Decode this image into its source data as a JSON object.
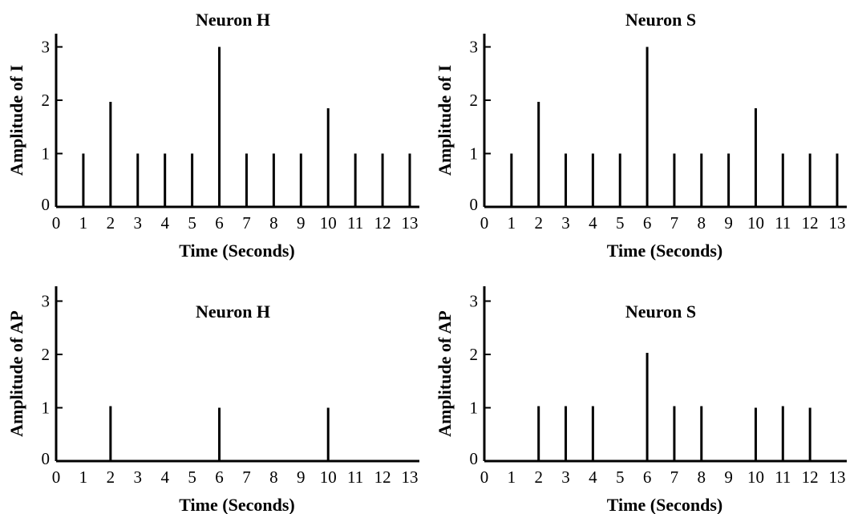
{
  "chart_data": [
    {
      "type": "bar",
      "title": "Neuron H",
      "xlabel": "Time (Seconds)",
      "ylabel": "Amplitude of I",
      "x_ticks": [
        "0",
        "1",
        "2",
        "3",
        "4",
        "5",
        "6",
        "7",
        "8",
        "9",
        "10",
        "11",
        "12",
        "13"
      ],
      "y_ticks": [
        "0",
        "1",
        "2",
        "3"
      ],
      "xlim": [
        0,
        13
      ],
      "ylim": [
        0,
        3.3
      ],
      "x": [
        1,
        2,
        3,
        4,
        5,
        6,
        7,
        8,
        9,
        10,
        11,
        12,
        13
      ],
      "values": [
        1,
        1.97,
        1,
        1,
        1,
        3,
        1,
        1,
        1,
        1.85,
        1,
        1,
        1
      ],
      "title_position": "top"
    },
    {
      "type": "bar",
      "title": "Neuron S",
      "xlabel": "Time (Seconds)",
      "ylabel": "Amplitude of I",
      "x_ticks": [
        "0",
        "1",
        "2",
        "3",
        "4",
        "5",
        "6",
        "7",
        "8",
        "9",
        "10",
        "11",
        "12",
        "13"
      ],
      "y_ticks": [
        "0",
        "1",
        "2",
        "3"
      ],
      "xlim": [
        0,
        13
      ],
      "ylim": [
        0,
        3.3
      ],
      "x": [
        1,
        2,
        3,
        4,
        5,
        6,
        7,
        8,
        9,
        10,
        11,
        12,
        13
      ],
      "values": [
        1,
        1.97,
        1,
        1,
        1,
        3,
        1,
        1,
        1,
        1.85,
        1,
        1,
        1
      ],
      "title_position": "top"
    },
    {
      "type": "bar",
      "title": "Neuron H",
      "xlabel": "Time (Seconds)",
      "ylabel": "Amplitude of AP",
      "x_ticks": [
        "0",
        "1",
        "2",
        "3",
        "4",
        "5",
        "6",
        "7",
        "8",
        "9",
        "10",
        "11",
        "12",
        "13"
      ],
      "y_ticks": [
        "0",
        "1",
        "2",
        "3"
      ],
      "xlim": [
        0,
        13
      ],
      "ylim": [
        0,
        3.3
      ],
      "x": [
        2,
        6,
        10
      ],
      "values": [
        1.03,
        1,
        1
      ],
      "title_position": "inside"
    },
    {
      "type": "bar",
      "title": "Neuron S",
      "xlabel": "Time (Seconds)",
      "ylabel": "Amplitude of AP",
      "x_ticks": [
        "0",
        "1",
        "2",
        "3",
        "4",
        "5",
        "6",
        "7",
        "8",
        "9",
        "10",
        "11",
        "12",
        "13"
      ],
      "y_ticks": [
        "0",
        "1",
        "2",
        "3"
      ],
      "xlim": [
        0,
        13
      ],
      "ylim": [
        0,
        3.3
      ],
      "x": [
        2,
        3,
        4,
        6,
        7,
        8,
        10,
        11,
        12
      ],
      "values": [
        1.03,
        1.03,
        1.03,
        2.03,
        1.03,
        1.03,
        1,
        1.03,
        1
      ],
      "title_position": "inside"
    }
  ]
}
